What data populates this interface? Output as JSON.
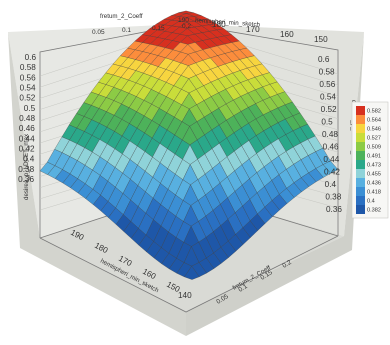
{
  "chart_data": {
    "type": "surface3d",
    "title": "",
    "x_axis": {
      "label": "fretum_2_Coeff",
      "ticks": [
        "0.05",
        "0.1",
        "0.15",
        "0.2"
      ],
      "range": [
        0,
        0.2
      ]
    },
    "y_axis": {
      "label": "hemispheri_min_sketch",
      "ticks": [
        "190",
        "180",
        "170",
        "160",
        "150"
      ],
      "range": [
        140,
        190
      ]
    },
    "z_axis": {
      "label": "desirea_p_LDCET_max",
      "ticks": [
        "0.36",
        "0.38",
        "0.4",
        "0.42",
        "0.44",
        "0.46",
        "0.48",
        "0.5",
        "0.52",
        "0.54",
        "0.56",
        "0.58",
        "0.6"
      ],
      "range": [
        0.36,
        0.6
      ]
    },
    "front_axes": {
      "left_label": "hemispheri_min_sketch",
      "left_ticks": [
        "190",
        "180",
        "170",
        "160",
        "150"
      ],
      "right_label": "fretum_2_Coeff",
      "right_ticks": [
        "0.05",
        "0.1",
        "0.15",
        "0.2"
      ],
      "corner_tick": "140"
    },
    "surface_extremes": {
      "peak": 0.62,
      "base_corners": 0.45,
      "trough": 0.36
    },
    "legend": {
      "levels": [
        "0.582",
        "0.564",
        "0.546",
        "0.527",
        "0.509",
        "0.491",
        "0.473",
        "0.455",
        "0.436",
        "0.418",
        "0.4",
        "0.382"
      ],
      "colors": [
        "#d7301f",
        "#fc8d3c",
        "#f7d53f",
        "#c9dd3a",
        "#8ccb45",
        "#4db25a",
        "#2aa88a",
        "#8fd3d9",
        "#58b0e0",
        "#3b8fd4",
        "#2a70c2",
        "#1e57a8"
      ]
    },
    "grid": true,
    "legend_position": "right"
  }
}
